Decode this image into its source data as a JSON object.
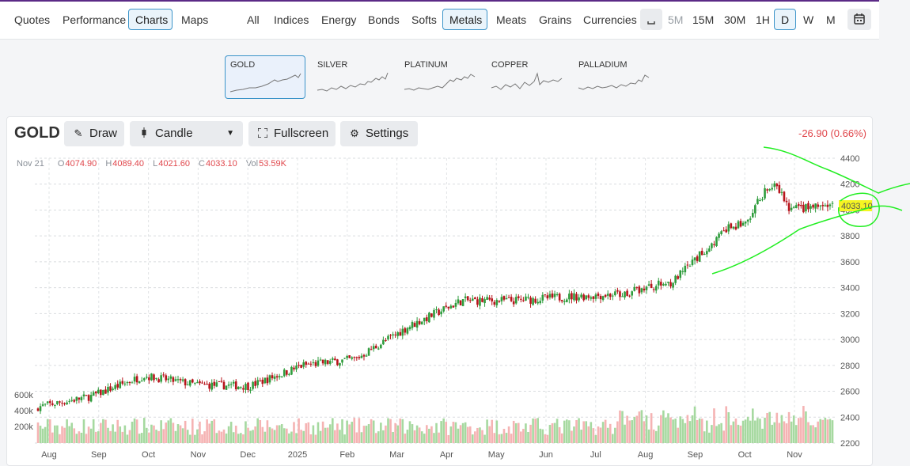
{
  "nav": {
    "tabs": [
      "Quotes",
      "Performance",
      "Charts",
      "Maps"
    ],
    "active_tab": "Charts"
  },
  "categories": {
    "items": [
      "All",
      "Indices",
      "Energy",
      "Bonds",
      "Softs",
      "Metals",
      "Meats",
      "Grains",
      "Currencies"
    ],
    "active": "Metals"
  },
  "timeframes": {
    "items": [
      "5M",
      "15M",
      "30M",
      "1H",
      "D",
      "W",
      "M"
    ],
    "active": "D"
  },
  "thumbnails": [
    {
      "label": "GOLD",
      "active": true
    },
    {
      "label": "SILVER",
      "active": false
    },
    {
      "label": "PLATINUM",
      "active": false
    },
    {
      "label": "COPPER",
      "active": false
    },
    {
      "label": "PALLADIUM",
      "active": false
    }
  ],
  "toolbar": {
    "symbol": "GOLD",
    "draw_label": "Draw",
    "chart_type_label": "Candle",
    "fullscreen_label": "Fullscreen",
    "settings_label": "Settings"
  },
  "change_text": "-26.90 (0.66%)",
  "ohlc": {
    "date": "Nov 21",
    "open_key": "O",
    "open": "4074.90",
    "high_key": "H",
    "high": "4089.40",
    "low_key": "L",
    "low": "4021.60",
    "close_key": "C",
    "close": "4033.10",
    "vol_key": "Vol",
    "vol": "53.59K"
  },
  "colors": {
    "up": "#2e9c3c",
    "down": "#b8141c",
    "vol_up": "#a6d9a0",
    "vol_down": "#f5b3b3",
    "accent": "#3b94c9",
    "annotation": "#22ee22",
    "price_tag": "#f5f522"
  },
  "chart_data": {
    "type": "candlestick",
    "title": "GOLD",
    "ylim": [
      2200,
      4400
    ],
    "y_ticks": [
      4400,
      4200,
      4000,
      3800,
      3600,
      3400,
      3200,
      3000,
      2800,
      2600,
      2400,
      2200
    ],
    "volume_ticks": [
      "600k",
      "400k",
      "200k"
    ],
    "x_ticks": [
      "Aug",
      "Sep",
      "Oct",
      "Nov",
      "Dec",
      "2025",
      "Feb",
      "Mar",
      "Apr",
      "May",
      "Jun",
      "Jul",
      "Aug",
      "Sep",
      "Oct",
      "Nov"
    ],
    "last_price": "4033.10",
    "close_path_monthly": [
      {
        "month": "Aug 2024",
        "close": 2480
      },
      {
        "month": "Sep 2024",
        "close": 2560
      },
      {
        "month": "Oct 2024",
        "close": 2720
      },
      {
        "month": "Nov 2024",
        "close": 2650
      },
      {
        "month": "Dec 2024",
        "close": 2640
      },
      {
        "month": "Jan 2025",
        "close": 2800
      },
      {
        "month": "Feb 2025",
        "close": 2850
      },
      {
        "month": "Mar 2025",
        "close": 3100
      },
      {
        "month": "Apr 2025",
        "close": 3300
      },
      {
        "month": "May 2025",
        "close": 3300
      },
      {
        "month": "Jun 2025",
        "close": 3330
      },
      {
        "month": "Jul 2025",
        "close": 3350
      },
      {
        "month": "Aug 2025",
        "close": 3450
      },
      {
        "month": "Sep 2025",
        "close": 3850
      },
      {
        "month": "Oct 2025",
        "close": 4000
      },
      {
        "month": "Nov 2025",
        "close": 4033
      }
    ]
  }
}
